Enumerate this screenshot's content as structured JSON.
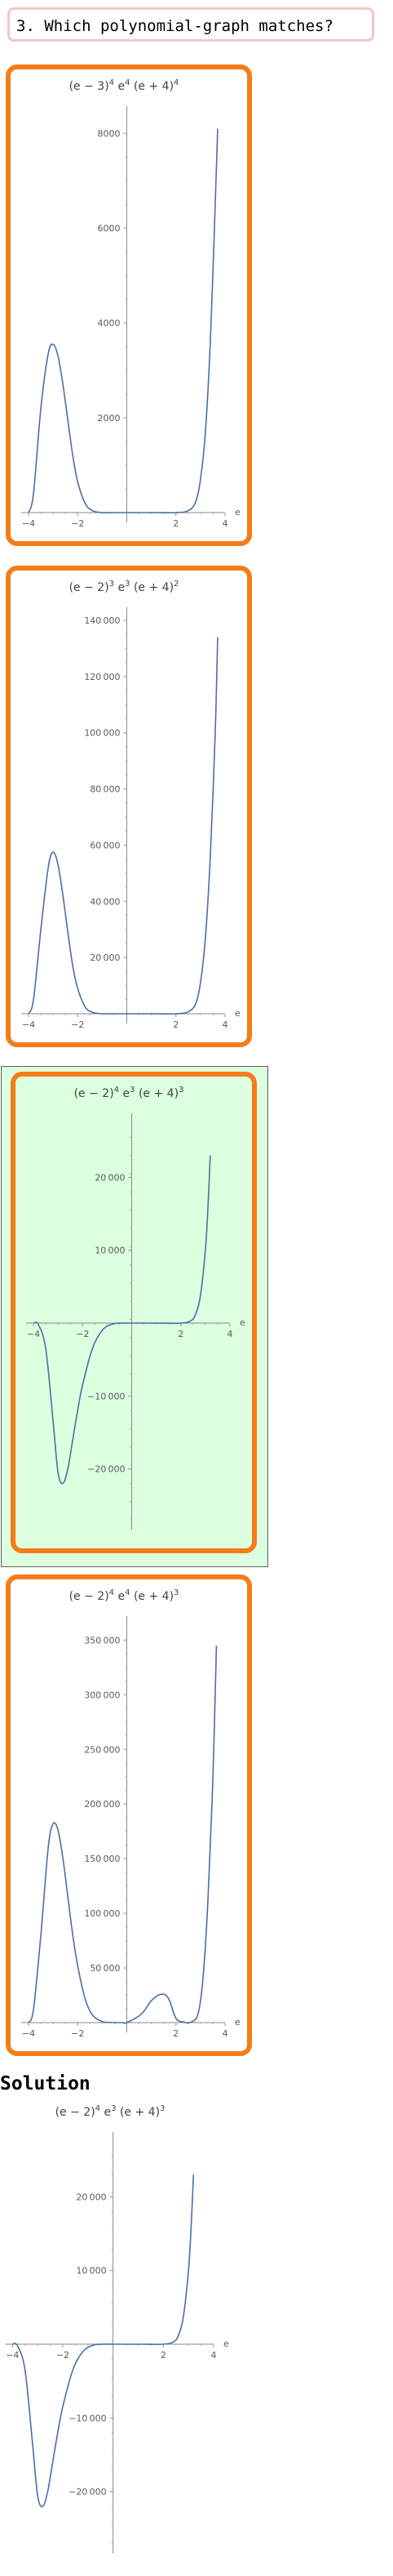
{
  "question": {
    "text": "3. Which polynomial‐graph matches?"
  },
  "solution": {
    "title": "Solution"
  },
  "chart_data": [
    {
      "type": "line",
      "title_parts": [
        "(e − 3)",
        "4",
        " e",
        "4",
        " (e + 4)",
        "4"
      ],
      "xlabel": "e",
      "xlim": [
        -4.3,
        4.0
      ],
      "ylim": [
        0,
        8300
      ],
      "x_ticks": [
        -4,
        -2,
        2,
        4
      ],
      "x_tick_labels": [
        "−4",
        "−2",
        "2",
        "4"
      ],
      "y_ticks": [
        2000,
        4000,
        6000,
        8000
      ],
      "y_tick_labels": [
        "2000",
        "4000",
        "6000",
        "8000"
      ],
      "series": [
        {
          "x": [
            -4.0,
            -3.8,
            -3.5,
            -3.2,
            -3.0,
            -2.8,
            -2.6,
            -2.4,
            -2.2,
            -2.0,
            -1.7,
            -1.4,
            -1.0,
            -0.5,
            0.0,
            1.0,
            2.0,
            2.5,
            2.8,
            3.0,
            3.2,
            3.4,
            3.6,
            3.7
          ],
          "y": [
            0,
            400,
            2200,
            3350,
            3550,
            3300,
            2700,
            1950,
            1200,
            650,
            200,
            40,
            0,
            0,
            0,
            0,
            0,
            40,
            220,
            700,
            1700,
            3600,
            6500,
            8100
          ]
        }
      ],
      "color": "#4a6fa5"
    },
    {
      "type": "line",
      "title_parts": [
        "(e − 2)",
        "3",
        " e",
        "3",
        " (e + 4)",
        "2"
      ],
      "xlabel": "e",
      "xlim": [
        -4.3,
        4.0
      ],
      "ylim": [
        0,
        140000
      ],
      "x_ticks": [
        -4,
        -2,
        2,
        4
      ],
      "x_tick_labels": [
        "−4",
        "−2",
        "2",
        "4"
      ],
      "y_ticks": [
        20000,
        40000,
        60000,
        80000,
        100000,
        120000,
        140000
      ],
      "y_tick_labels": [
        "20 000",
        "40 000",
        "60 000",
        "80 000",
        "100 000",
        "120 000",
        "140 000"
      ],
      "series": [
        {
          "x": [
            -4.0,
            -3.8,
            -3.5,
            -3.2,
            -3.0,
            -2.8,
            -2.6,
            -2.4,
            -2.2,
            -2.0,
            -1.7,
            -1.4,
            -1.0,
            -0.5,
            0.0,
            1.0,
            2.0,
            2.5,
            2.8,
            3.0,
            3.2,
            3.4,
            3.6,
            3.7
          ],
          "y": [
            0,
            5000,
            30000,
            52000,
            57500,
            53000,
            42000,
            29000,
            17000,
            9000,
            2500,
            500,
            0,
            0,
            0,
            0,
            0,
            700,
            3500,
            11000,
            27000,
            56000,
            100000,
            134000
          ]
        }
      ],
      "color": "#4a6fa5"
    },
    {
      "type": "line",
      "title_parts": [
        "(e − 2)",
        "4",
        " e",
        "3",
        " (e + 4)",
        "3"
      ],
      "xlabel": "e",
      "xlim": [
        -4.3,
        4.0
      ],
      "ylim": [
        -27000,
        27000
      ],
      "x_ticks": [
        -4,
        -2,
        2,
        4
      ],
      "x_tick_labels": [
        "−4",
        "−2",
        "2",
        "4"
      ],
      "y_ticks": [
        -20000,
        -10000,
        10000,
        20000
      ],
      "y_tick_labels": [
        "−20 000",
        "−10 000",
        "10 000",
        "20 000"
      ],
      "series": [
        {
          "x": [
            -4.0,
            -3.8,
            -3.5,
            -3.2,
            -3.0,
            -2.8,
            -2.6,
            -2.4,
            -2.2,
            -2.0,
            -1.6,
            -1.2,
            -0.8,
            -0.4,
            0.0,
            1.0,
            2.0,
            2.4,
            2.6,
            2.8,
            3.0,
            3.1,
            3.2
          ],
          "y": [
            0,
            -200,
            -3500,
            -13500,
            -20500,
            -22000,
            -20000,
            -16000,
            -12000,
            -8500,
            -3500,
            -1000,
            -150,
            0,
            0,
            0,
            0,
            300,
            1200,
            3800,
            10000,
            15500,
            23000
          ]
        }
      ],
      "color": "#4a6fa5"
    },
    {
      "type": "line",
      "title_parts": [
        "(e − 2)",
        "4",
        " e",
        "4",
        " (e + 4)",
        "3"
      ],
      "xlabel": "e",
      "xlim": [
        -4.3,
        4.0
      ],
      "ylim": [
        0,
        360000
      ],
      "x_ticks": [
        -4,
        -2,
        2,
        4
      ],
      "x_tick_labels": [
        "−4",
        "−2",
        "2",
        "4"
      ],
      "y_ticks": [
        50000,
        100000,
        150000,
        200000,
        250000,
        300000,
        350000
      ],
      "y_tick_labels": [
        "50 000",
        "100 000",
        "150 000",
        "200 000",
        "250 000",
        "300 000",
        "350 000"
      ],
      "series": [
        {
          "x": [
            -4.0,
            -3.8,
            -3.5,
            -3.2,
            -3.0,
            -2.8,
            -2.6,
            -2.4,
            -2.2,
            -2.0,
            -1.7,
            -1.4,
            -1.0,
            -0.6,
            -0.2,
            0.0,
            0.6,
            1.0,
            1.4,
            1.7,
            2.0,
            2.3,
            2.6,
            2.9,
            3.1,
            3.3,
            3.5,
            3.65
          ],
          "y": [
            0,
            12000,
            80000,
            160000,
            182000,
            176000,
            150000,
            115000,
            80000,
            52000,
            22000,
            7000,
            1000,
            100,
            0,
            0,
            8000,
            20000,
            26000,
            22000,
            4000,
            600,
            300,
            8000,
            40000,
            110000,
            220000,
            345000
          ]
        }
      ],
      "color": "#4a6fa5"
    },
    {
      "type": "line",
      "title_parts": [
        "(e − 2)",
        "4",
        " e",
        "3",
        " (e + 4)",
        "3"
      ],
      "xlabel": "e",
      "xlim": [
        -4.3,
        4.0
      ],
      "ylim": [
        -27000,
        27000
      ],
      "x_ticks": [
        -4,
        -2,
        2,
        4
      ],
      "x_tick_labels": [
        "−4",
        "−2",
        "2",
        "4"
      ],
      "y_ticks": [
        -20000,
        -10000,
        10000,
        20000
      ],
      "y_tick_labels": [
        "−20 000",
        "−10 000",
        "10 000",
        "20 000"
      ],
      "series": [
        {
          "x": [
            -4.0,
            -3.8,
            -3.5,
            -3.2,
            -3.0,
            -2.8,
            -2.6,
            -2.4,
            -2.2,
            -2.0,
            -1.6,
            -1.2,
            -0.8,
            -0.4,
            0.0,
            1.0,
            2.0,
            2.4,
            2.6,
            2.8,
            3.0,
            3.1,
            3.2
          ],
          "y": [
            0,
            -200,
            -3500,
            -13500,
            -20500,
            -22000,
            -20000,
            -16000,
            -12000,
            -8500,
            -3500,
            -1000,
            -150,
            0,
            0,
            0,
            0,
            300,
            1200,
            3800,
            10000,
            15500,
            23000
          ]
        }
      ],
      "color": "#4a6fa5"
    }
  ]
}
